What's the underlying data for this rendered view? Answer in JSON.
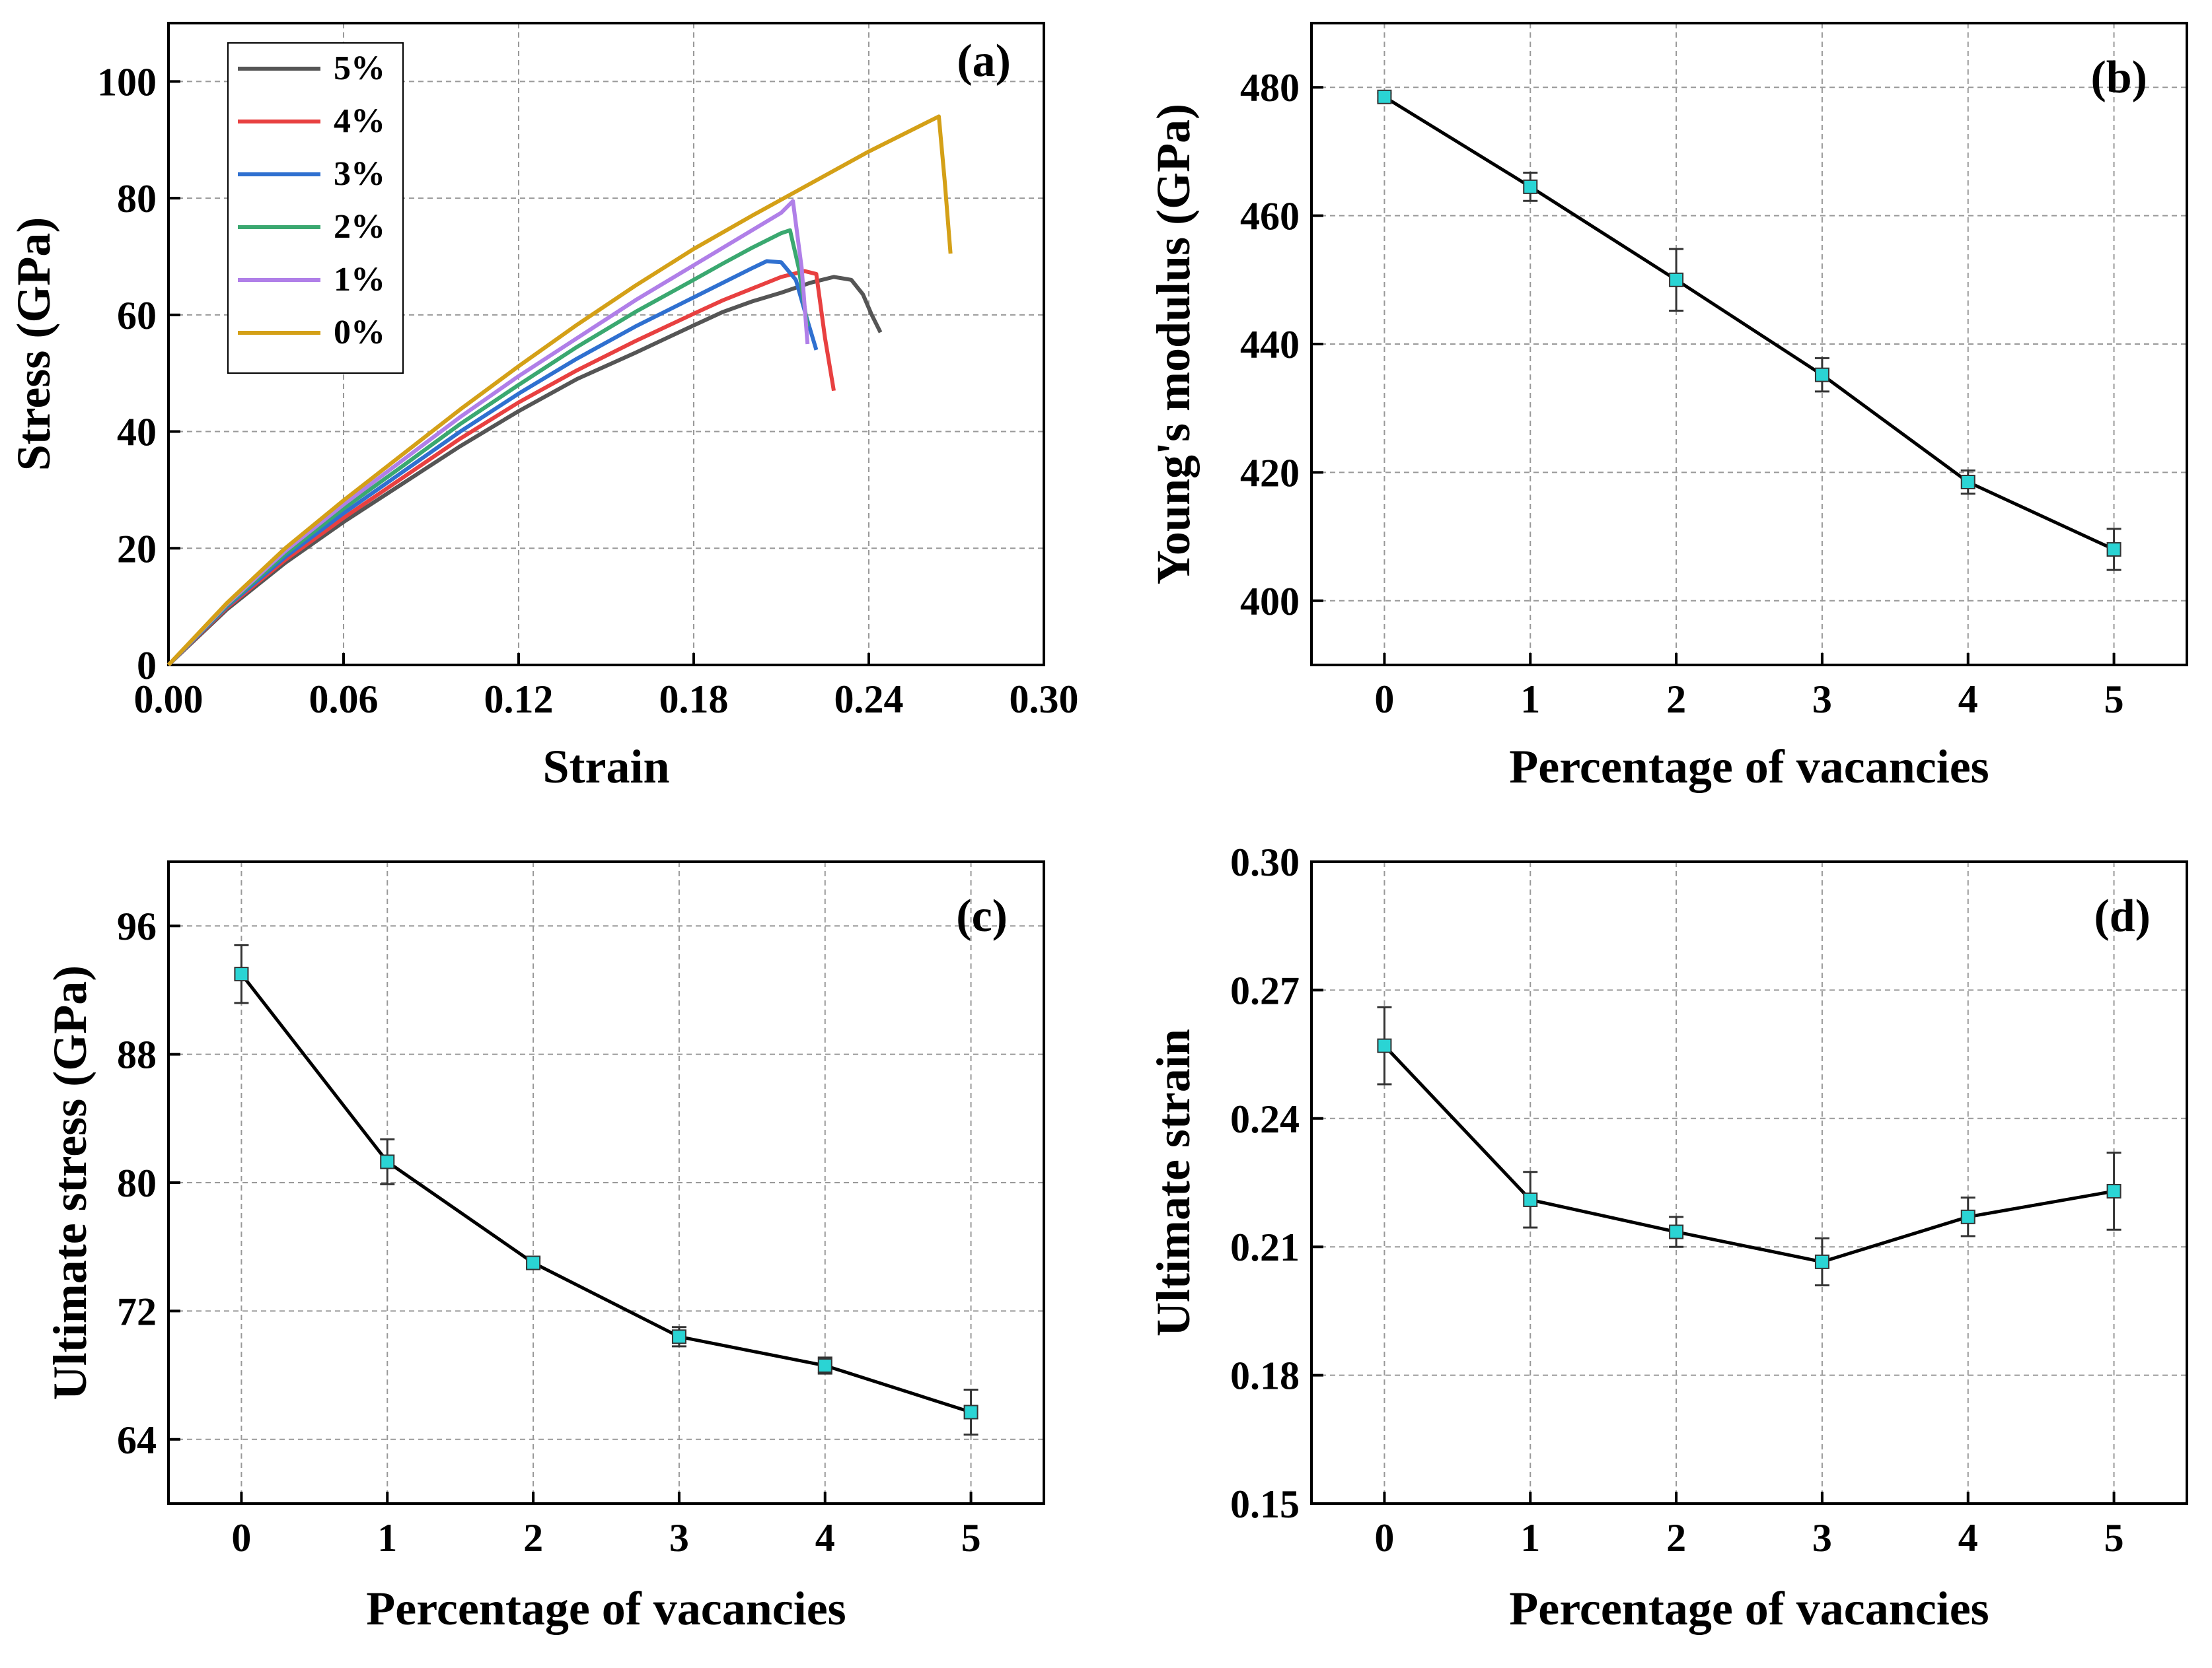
{
  "chart_data": [
    {
      "panel": "(a)",
      "type": "line",
      "xlabel": "Strain",
      "ylabel": "Stress (GPa)",
      "xlim": [
        0,
        0.3
      ],
      "ylim": [
        0,
        110
      ],
      "xticks": [
        0.0,
        0.06,
        0.12,
        0.18,
        0.24,
        0.3
      ],
      "xtick_labels": [
        "0.00",
        "0.06",
        "0.12",
        "0.18",
        "0.24",
        "0.30"
      ],
      "yticks": [
        0,
        20,
        40,
        60,
        80,
        100
      ],
      "ytick_labels": [
        "0",
        "20",
        "40",
        "60",
        "80",
        "100"
      ],
      "grid": true,
      "legend_position": "top-left",
      "series": [
        {
          "name": "5%",
          "color": "#555555",
          "x": [
            0,
            0.02,
            0.04,
            0.06,
            0.08,
            0.1,
            0.12,
            0.14,
            0.16,
            0.18,
            0.19,
            0.2,
            0.21,
            0.22,
            0.228,
            0.234,
            0.238,
            0.241,
            0.244
          ],
          "y": [
            0,
            9.5,
            17.5,
            24.5,
            31,
            37.5,
            43.5,
            49,
            53.5,
            58.2,
            60.5,
            62.3,
            63.8,
            65.5,
            66.5,
            66,
            63.5,
            60,
            57
          ]
        },
        {
          "name": "4%",
          "color": "#e84040",
          "x": [
            0,
            0.02,
            0.04,
            0.06,
            0.08,
            0.1,
            0.12,
            0.14,
            0.16,
            0.18,
            0.19,
            0.2,
            0.21,
            0.218,
            0.222,
            0.225,
            0.228
          ],
          "y": [
            0,
            9.8,
            18,
            25.2,
            32,
            38.8,
            45,
            50.5,
            55.5,
            60.2,
            62.5,
            64.5,
            66.5,
            67.5,
            67,
            56,
            47
          ]
        },
        {
          "name": "3%",
          "color": "#2f70d0",
          "x": [
            0,
            0.02,
            0.04,
            0.06,
            0.08,
            0.1,
            0.12,
            0.14,
            0.16,
            0.18,
            0.19,
            0.2,
            0.205,
            0.21,
            0.215,
            0.219,
            0.222
          ],
          "y": [
            0,
            10,
            18.5,
            26,
            33,
            40,
            46.5,
            52.5,
            58,
            63,
            65.5,
            68,
            69.2,
            69,
            66,
            59,
            54
          ]
        },
        {
          "name": "2%",
          "color": "#3aa870",
          "x": [
            0,
            0.02,
            0.04,
            0.06,
            0.08,
            0.1,
            0.12,
            0.14,
            0.16,
            0.18,
            0.19,
            0.2,
            0.21,
            0.213,
            0.216,
            0.219
          ],
          "y": [
            0,
            10.2,
            19,
            26.8,
            34,
            41.3,
            48,
            54.5,
            60.5,
            66,
            68.8,
            71.5,
            74,
            74.5,
            68,
            58
          ]
        },
        {
          "name": "1%",
          "color": "#b07fe8",
          "x": [
            0,
            0.02,
            0.04,
            0.06,
            0.08,
            0.1,
            0.12,
            0.14,
            0.16,
            0.18,
            0.19,
            0.2,
            0.21,
            0.214,
            0.217,
            0.219
          ],
          "y": [
            0,
            10.4,
            19.5,
            27.5,
            35,
            42.5,
            49.5,
            56,
            62.5,
            68.5,
            71.5,
            74.5,
            77.5,
            79.5,
            68,
            55
          ]
        },
        {
          "name": "0%",
          "color": "#d4a017",
          "x": [
            0,
            0.02,
            0.04,
            0.06,
            0.08,
            0.1,
            0.12,
            0.14,
            0.16,
            0.18,
            0.2,
            0.22,
            0.24,
            0.26,
            0.264,
            0.266,
            0.268
          ],
          "y": [
            0,
            10.6,
            20,
            28.2,
            36,
            43.8,
            51.2,
            58.3,
            65,
            71.3,
            77,
            82.5,
            88,
            93,
            94,
            83,
            70.5
          ]
        }
      ]
    },
    {
      "panel": "(b)",
      "type": "line",
      "xlabel": "Percentage of vacancies",
      "ylabel": "Young's modulus (GPa)",
      "xlim": [
        -0.5,
        5.5
      ],
      "ylim": [
        390,
        490
      ],
      "xticks": [
        0,
        1,
        2,
        3,
        4,
        5
      ],
      "xtick_labels": [
        "0",
        "1",
        "2",
        "3",
        "4",
        "5"
      ],
      "yticks": [
        400,
        420,
        440,
        460,
        480
      ],
      "ytick_labels": [
        "400",
        "420",
        "440",
        "460",
        "480"
      ],
      "grid": true,
      "x": [
        0,
        1,
        2,
        3,
        4,
        5
      ],
      "y": [
        478.5,
        464.5,
        450,
        435.2,
        418.5,
        408
      ],
      "yerr": [
        0.6,
        2.2,
        4.8,
        2.6,
        1.8,
        3.2
      ]
    },
    {
      "panel": "(c)",
      "type": "line",
      "xlabel": "Percentage of vacancies",
      "ylabel": "Ultimate stress (GPa)",
      "xlim": [
        -0.5,
        5.5
      ],
      "ylim": [
        60,
        100
      ],
      "xticks": [
        0,
        1,
        2,
        3,
        4,
        5
      ],
      "xtick_labels": [
        "0",
        "1",
        "2",
        "3",
        "4",
        "5"
      ],
      "yticks": [
        64,
        72,
        80,
        88,
        96
      ],
      "ytick_labels": [
        "64",
        "72",
        "80",
        "88",
        "96"
      ],
      "grid": true,
      "x": [
        0,
        1,
        2,
        3,
        4,
        5
      ],
      "y": [
        93,
        81.3,
        75,
        70.4,
        68.6,
        65.7
      ],
      "yerr": [
        1.8,
        1.4,
        0.3,
        0.6,
        0.5,
        1.4
      ]
    },
    {
      "panel": "(d)",
      "type": "line",
      "xlabel": "Percentage of vacancies",
      "ylabel": "Ultimate strain",
      "xlim": [
        -0.5,
        5.5
      ],
      "ylim": [
        0.15,
        0.3
      ],
      "xticks": [
        0,
        1,
        2,
        3,
        4,
        5
      ],
      "xtick_labels": [
        "0",
        "1",
        "2",
        "3",
        "4",
        "5"
      ],
      "yticks": [
        0.15,
        0.18,
        0.21,
        0.24,
        0.27,
        0.3
      ],
      "ytick_labels": [
        "0.15",
        "0.18",
        "0.21",
        "0.24",
        "0.27",
        "0.30"
      ],
      "grid": true,
      "x": [
        0,
        1,
        2,
        3,
        4,
        5
      ],
      "y": [
        0.257,
        0.221,
        0.2135,
        0.2065,
        0.217,
        0.223
      ],
      "yerr": [
        0.009,
        0.0065,
        0.0035,
        0.0055,
        0.0045,
        0.009
      ]
    }
  ]
}
